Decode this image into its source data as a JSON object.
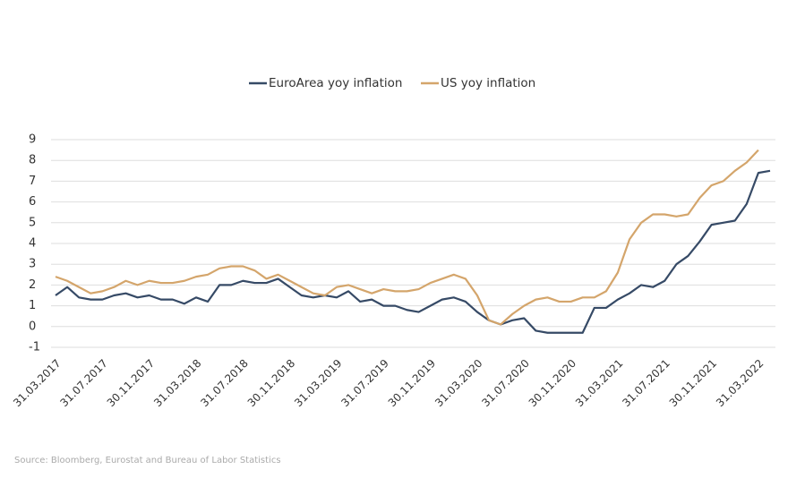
{
  "chart_data": {
    "type": "line",
    "categories": [
      "31.03.2017",
      null,
      null,
      null,
      "31.07.2017",
      null,
      null,
      null,
      "30.11.2017",
      null,
      null,
      null,
      "31.03.2018",
      null,
      null,
      null,
      "31.07.2018",
      null,
      null,
      null,
      "30.11.2018",
      null,
      null,
      null,
      "31.03.2019",
      null,
      null,
      null,
      "31.07.2019",
      null,
      null,
      null,
      "30.11.2019",
      null,
      null,
      null,
      "31.03.2020",
      null,
      null,
      null,
      "31.07.2020",
      null,
      null,
      null,
      "30.11.2020",
      null,
      null,
      null,
      "31.03.2021",
      null,
      null,
      null,
      "31.07.2021",
      null,
      null,
      null,
      "30.11.2021",
      null,
      null,
      null,
      "31.03.2022",
      null
    ],
    "series": [
      {
        "name": "EuroArea yoy inflation",
        "color": "#364a66",
        "values": [
          1.5,
          1.9,
          1.4,
          1.3,
          1.3,
          1.5,
          1.6,
          1.4,
          1.5,
          1.3,
          1.3,
          1.1,
          1.4,
          1.2,
          2.0,
          2.0,
          2.2,
          2.1,
          2.1,
          2.3,
          1.9,
          1.5,
          1.4,
          1.5,
          1.4,
          1.7,
          1.2,
          1.3,
          1.0,
          1.0,
          0.8,
          0.7,
          1.0,
          1.3,
          1.4,
          1.2,
          0.7,
          0.3,
          0.1,
          0.3,
          0.4,
          -0.2,
          -0.3,
          -0.3,
          -0.3,
          -0.3,
          0.9,
          0.9,
          1.3,
          1.6,
          2.0,
          1.9,
          2.2,
          3.0,
          3.4,
          4.1,
          4.9,
          5.0,
          5.1,
          5.9,
          7.4,
          7.5
        ]
      },
      {
        "name": "US yoy inflation",
        "color": "#d4a56b",
        "values": [
          2.4,
          2.2,
          1.9,
          1.6,
          1.7,
          1.9,
          2.2,
          2.0,
          2.2,
          2.1,
          2.1,
          2.2,
          2.4,
          2.5,
          2.8,
          2.9,
          2.9,
          2.7,
          2.3,
          2.5,
          2.2,
          1.9,
          1.6,
          1.5,
          1.9,
          2.0,
          1.8,
          1.6,
          1.8,
          1.7,
          1.7,
          1.8,
          2.1,
          2.3,
          2.5,
          2.3,
          1.5,
          0.3,
          0.1,
          0.6,
          1.0,
          1.3,
          1.4,
          1.2,
          1.2,
          1.4,
          1.4,
          1.7,
          2.6,
          4.2,
          5.0,
          5.4,
          5.4,
          5.3,
          5.4,
          6.2,
          6.8,
          7.0,
          7.5,
          7.9,
          8.5,
          null
        ]
      }
    ],
    "ylim": [
      -1,
      9
    ],
    "yticks": [
      -1,
      0,
      1,
      2,
      3,
      4,
      5,
      6,
      7,
      8,
      9
    ],
    "grid": true,
    "legend": "top",
    "source": "Source: Bloomberg, Eurostat and Bureau of Labor Statistics"
  }
}
